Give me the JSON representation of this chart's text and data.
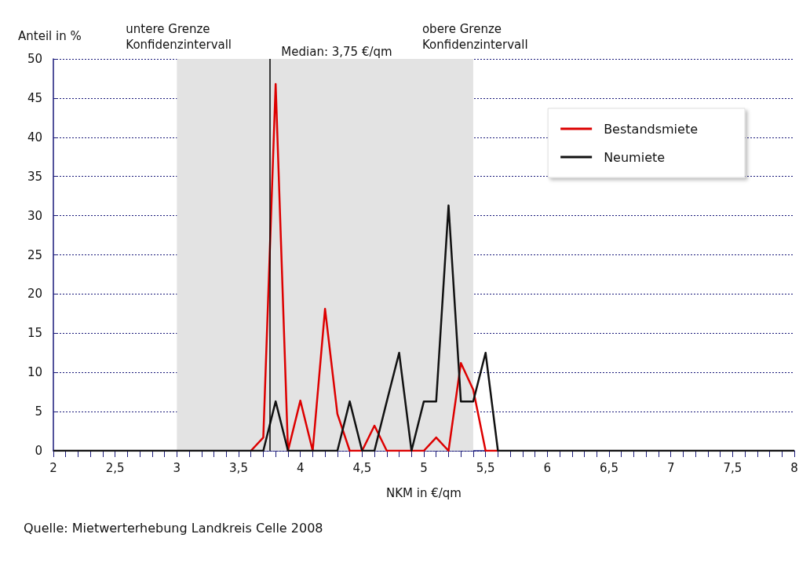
{
  "chart_data": {
    "type": "line",
    "xlabel": "NKM in €/qm",
    "ylabel": "Anteil in %",
    "x": [
      2,
      2.1,
      2.2,
      2.3,
      2.4,
      2.5,
      2.6,
      2.7,
      2.8,
      2.9,
      3,
      3.1,
      3.2,
      3.3,
      3.4,
      3.5,
      3.6,
      3.7,
      3.8,
      3.9,
      4,
      4.1,
      4.2,
      4.3,
      4.4,
      4.5,
      4.6,
      4.7,
      4.8,
      4.9,
      5,
      5.1,
      5.2,
      5.3,
      5.4,
      5.5,
      5.6,
      5.7,
      5.8,
      5.9,
      6,
      6.1,
      6.2,
      6.3,
      6.4,
      6.5,
      6.6,
      6.7,
      6.8,
      6.9,
      7,
      7.1,
      7.2,
      7.3,
      7.4,
      7.5,
      7.6,
      7.7,
      7.8,
      7.9,
      8
    ],
    "series": [
      {
        "name": "Bestandsmiete",
        "color": "#dd0000",
        "values": [
          null,
          null,
          null,
          null,
          null,
          null,
          null,
          null,
          null,
          null,
          null,
          null,
          null,
          null,
          null,
          null,
          0,
          1.7,
          46.8,
          0,
          6.4,
          0,
          18.1,
          4.7,
          0,
          0,
          3.2,
          0,
          0,
          0,
          0,
          1.7,
          0,
          11.2,
          7.8,
          0,
          0,
          null,
          null,
          null,
          null,
          null,
          null,
          null,
          null,
          null,
          null,
          null,
          null,
          null,
          null,
          null,
          null,
          null,
          null,
          null,
          null,
          null,
          null,
          null,
          null
        ]
      },
      {
        "name": "Neumiete",
        "color": "#111111",
        "values": [
          0,
          0,
          0,
          0,
          0,
          0,
          0,
          0,
          0,
          0,
          0,
          0,
          0,
          0,
          0,
          0,
          0,
          0,
          6.3,
          0,
          0,
          0,
          0,
          0,
          6.3,
          0,
          0,
          6.3,
          12.5,
          0,
          6.3,
          6.3,
          31.3,
          6.3,
          6.3,
          12.5,
          0,
          0,
          0,
          0,
          0,
          0,
          0,
          0,
          0,
          0,
          0,
          0,
          0,
          0,
          0,
          0,
          0,
          0,
          0,
          0,
          0,
          0,
          0,
          0,
          0
        ]
      }
    ],
    "xlim": [
      2,
      8
    ],
    "xticks": [
      2,
      {
        "value": 2.1,
        "label": null
      },
      {
        "value": 2.2,
        "label": null
      },
      {
        "value": 2.3,
        "label": null
      },
      {
        "value": 2.4,
        "label": null
      },
      {
        "value": 2.5,
        "label": "2,5"
      },
      {
        "value": 2.6,
        "label": null
      },
      {
        "value": 2.7,
        "label": null
      },
      {
        "value": 2.8,
        "label": null
      },
      {
        "value": 2.9,
        "label": null
      },
      3,
      {
        "value": 3.1,
        "label": null
      },
      {
        "value": 3.2,
        "label": null
      },
      {
        "value": 3.3,
        "label": null
      },
      {
        "value": 3.4,
        "label": null
      },
      {
        "value": 3.5,
        "label": "3,5"
      },
      {
        "value": 3.6,
        "label": null
      },
      {
        "value": 3.7,
        "label": null
      },
      {
        "value": 3.8,
        "label": null
      },
      {
        "value": 3.9,
        "label": null
      },
      4,
      {
        "value": 4.1,
        "label": null
      },
      {
        "value": 4.2,
        "label": null
      },
      {
        "value": 4.3,
        "label": null
      },
      {
        "value": 4.4,
        "label": null
      },
      {
        "value": 4.5,
        "label": "4,5"
      },
      {
        "value": 4.6,
        "label": null
      },
      {
        "value": 4.7,
        "label": null
      },
      {
        "value": 4.8,
        "label": null
      },
      {
        "value": 4.9,
        "label": null
      },
      5,
      {
        "value": 5.1,
        "label": null
      },
      {
        "value": 5.2,
        "label": null
      },
      {
        "value": 5.3,
        "label": null
      },
      {
        "value": 5.4,
        "label": null
      },
      {
        "value": 5.5,
        "label": "5,5"
      },
      {
        "value": 5.6,
        "label": null
      },
      {
        "value": 5.7,
        "label": null
      },
      {
        "value": 5.8,
        "label": null
      },
      {
        "value": 5.9,
        "label": null
      },
      6,
      {
        "value": 6.1,
        "label": null
      },
      {
        "value": 6.2,
        "label": null
      },
      {
        "value": 6.3,
        "label": null
      },
      {
        "value": 6.4,
        "label": null
      },
      {
        "value": 6.5,
        "label": "6,5"
      },
      {
        "value": 6.6,
        "label": null
      },
      {
        "value": 6.7,
        "label": null
      },
      {
        "value": 6.8,
        "label": null
      },
      {
        "value": 6.9,
        "label": null
      },
      7,
      {
        "value": 7.1,
        "label": null
      },
      {
        "value": 7.2,
        "label": null
      },
      {
        "value": 7.3,
        "label": null
      },
      {
        "value": 7.4,
        "label": null
      },
      {
        "value": 7.5,
        "label": "7,5"
      },
      {
        "value": 7.6,
        "label": null
      },
      {
        "value": 7.7,
        "label": null
      },
      {
        "value": 7.8,
        "label": null
      },
      {
        "value": 7.9,
        "label": null
      },
      8
    ],
    "ylim": [
      0,
      50
    ],
    "yticks": [
      0,
      5,
      10,
      15,
      20,
      25,
      30,
      35,
      40,
      45,
      50
    ],
    "grid": "y",
    "legend": "top right",
    "marker": "none",
    "ref_lines": [
      {
        "axis": "x",
        "value": 3.75,
        "label": "Median: 3,75 €/qm",
        "color": "#000000"
      }
    ],
    "bands": [
      {
        "axis": "x",
        "from": 3,
        "to": 5.4,
        "color": "#e3e3e3"
      }
    ],
    "annotations": [
      {
        "text": "untere Grenze\nKonfidenzintervall",
        "x": 3,
        "y": 50
      },
      {
        "text": "obere Grenze\nKonfidenzintervall",
        "x": 5.4,
        "y": 50
      },
      "Quelle: Mietwerterhebung Landkreis Celle 2008"
    ]
  }
}
